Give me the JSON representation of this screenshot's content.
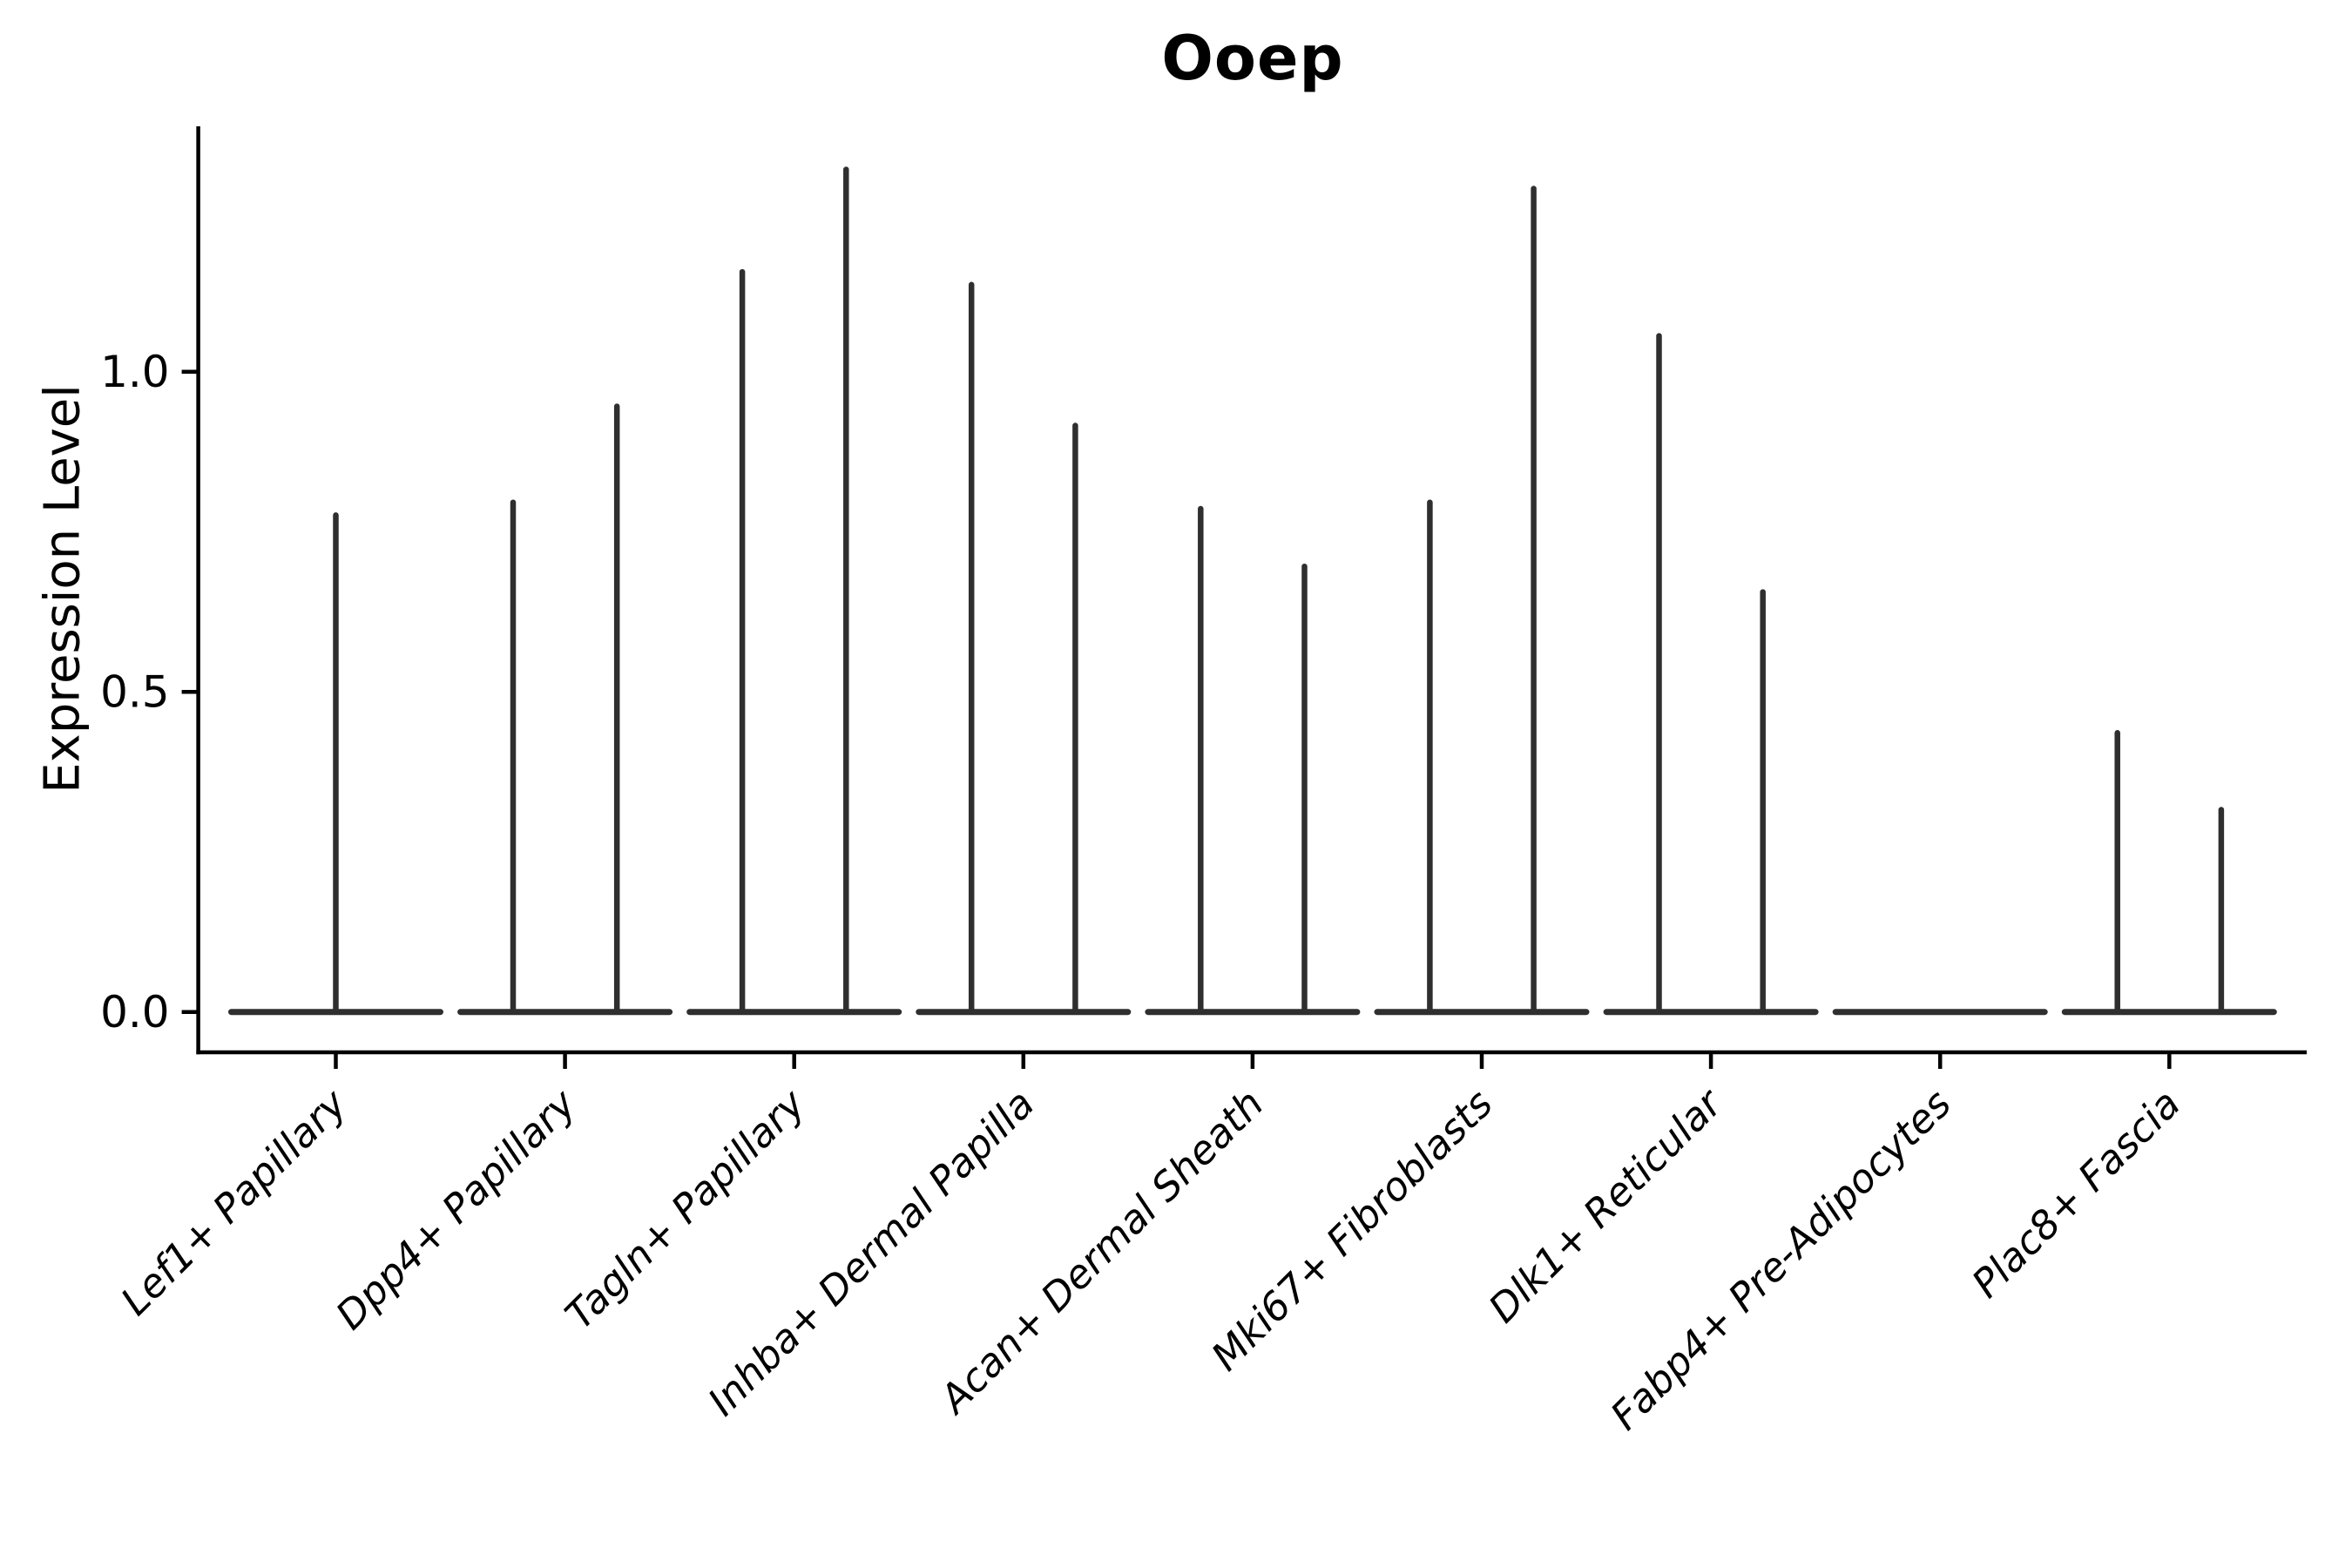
{
  "chart_data": {
    "type": "violin",
    "title": "Ooep",
    "ylabel": "Expression Level",
    "xlabel": "",
    "ytick_labels": [
      "0.0",
      "0.5",
      "1.0"
    ],
    "ytick_values": [
      0.0,
      0.5,
      1.0
    ],
    "ylim": [
      -0.06,
      1.38
    ],
    "grid": false,
    "legend_position": "none",
    "categories": [
      "Lef1+ Papillary",
      "Dpp4+ Papillary",
      "Tagln+ Papillary",
      "Inhba+ Dermal Papilla",
      "Acan+ Dermal Sheath",
      "Mki67+ Fibroblasts",
      "Dlk1+ Reticular",
      "Fabp4+ Pre-Adipocytes",
      "Plac8+ Fascia"
    ],
    "violins": [
      {
        "category": "Lef1+ Papillary",
        "spikes": [
          {
            "offset": 0.0,
            "max_expression": 0.78
          }
        ]
      },
      {
        "category": "Dpp4+ Papillary",
        "spikes": [
          {
            "offset": -0.2265,
            "max_expression": 0.8
          },
          {
            "offset": 0.2265,
            "max_expression": 0.95
          }
        ]
      },
      {
        "category": "Tagln+ Papillary",
        "spikes": [
          {
            "offset": -0.2265,
            "max_expression": 1.16
          },
          {
            "offset": 0.2265,
            "max_expression": 1.32
          }
        ]
      },
      {
        "category": "Inhba+ Dermal Papilla",
        "spikes": [
          {
            "offset": -0.2265,
            "max_expression": 1.14
          },
          {
            "offset": 0.2265,
            "max_expression": 0.92
          }
        ]
      },
      {
        "category": "Acan+ Dermal Sheath",
        "spikes": [
          {
            "offset": -0.2265,
            "max_expression": 0.79
          },
          {
            "offset": 0.2265,
            "max_expression": 0.7
          }
        ]
      },
      {
        "category": "Mki67+ Fibroblasts",
        "spikes": [
          {
            "offset": -0.2265,
            "max_expression": 0.8
          },
          {
            "offset": 0.2265,
            "max_expression": 1.29
          }
        ]
      },
      {
        "category": "Dlk1+ Reticular",
        "spikes": [
          {
            "offset": -0.2265,
            "max_expression": 1.06
          },
          {
            "offset": 0.2265,
            "max_expression": 0.66
          }
        ]
      },
      {
        "category": "Fabp4+ Pre-Adipocytes",
        "spikes": []
      },
      {
        "category": "Plac8+ Fascia",
        "spikes": [
          {
            "offset": -0.2265,
            "max_expression": 0.44
          },
          {
            "offset": 0.2265,
            "max_expression": 0.32
          }
        ]
      }
    ],
    "baseline_value": 0.0,
    "colors": {
      "violin_stroke": "#2f2f2f",
      "axis": "#000000",
      "background": "#ffffff"
    }
  }
}
